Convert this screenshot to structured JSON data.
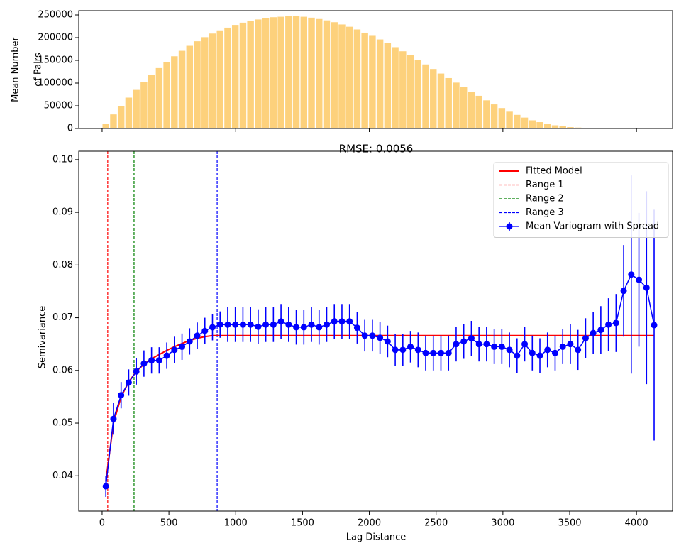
{
  "chart_data": [
    {
      "type": "bar",
      "ylabel": [
        "Mean Number",
        "of Pairs"
      ],
      "x": [
        28,
        85,
        142,
        199,
        256,
        313,
        370,
        427,
        484,
        541,
        598,
        655,
        712,
        769,
        826,
        883,
        940,
        997,
        1054,
        1111,
        1168,
        1225,
        1282,
        1339,
        1396,
        1453,
        1510,
        1567,
        1624,
        1681,
        1738,
        1795,
        1852,
        1909,
        1966,
        2023,
        2080,
        2137,
        2194,
        2251,
        2308,
        2365,
        2422,
        2479,
        2536,
        2593,
        2650,
        2707,
        2764,
        2821,
        2878,
        2935,
        2992,
        3049,
        3106,
        3163,
        3220,
        3277,
        3334,
        3391,
        3448,
        3505,
        3562,
        3619,
        3676,
        3733,
        3790,
        3847,
        3904,
        3961,
        4018,
        4075,
        4132
      ],
      "values": [
        10000,
        31000,
        50000,
        68000,
        85000,
        102000,
        118000,
        133000,
        146000,
        159000,
        171000,
        182000,
        192000,
        201000,
        209000,
        216000,
        222000,
        228000,
        233000,
        237000,
        240000,
        243000,
        245000,
        246000,
        247000,
        247000,
        246000,
        244000,
        241000,
        238000,
        234000,
        229000,
        224000,
        218000,
        211000,
        204000,
        196000,
        188000,
        179000,
        170000,
        161000,
        151000,
        141000,
        131000,
        121000,
        111000,
        101000,
        91000,
        81000,
        72000,
        62000,
        53000,
        45000,
        37000,
        30000,
        24000,
        18000,
        14000,
        10000,
        7000,
        5000,
        3000,
        2000,
        1000,
        500,
        200,
        0,
        0,
        0,
        0,
        0,
        0,
        0
      ],
      "color": "#fdd17c",
      "xlim": [
        -175,
        4270
      ],
      "xticks": [
        0,
        1000,
        2000,
        3000,
        4000
      ],
      "xtick_labels": false,
      "ylim": [
        0,
        259400
      ],
      "yticks": [
        0,
        50000,
        100000,
        150000,
        200000,
        250000
      ]
    },
    {
      "type": "line",
      "title": "RMSE: 0.0056",
      "xlabel": "Lag Distance",
      "ylabel": "Semivariance",
      "x": [
        28,
        85,
        142,
        199,
        256,
        313,
        370,
        427,
        484,
        541,
        598,
        655,
        712,
        769,
        826,
        883,
        940,
        997,
        1054,
        1111,
        1168,
        1225,
        1282,
        1339,
        1396,
        1453,
        1510,
        1567,
        1624,
        1681,
        1738,
        1795,
        1852,
        1909,
        1966,
        2023,
        2080,
        2137,
        2194,
        2251,
        2308,
        2365,
        2422,
        2479,
        2536,
        2593,
        2650,
        2707,
        2764,
        2821,
        2878,
        2935,
        2992,
        3049,
        3106,
        3163,
        3220,
        3277,
        3334,
        3391,
        3448,
        3505,
        3562,
        3619,
        3676,
        3733,
        3790,
        3847,
        3904,
        3961,
        4018,
        4075,
        4132
      ],
      "series": [
        {
          "name": "Fitted Model",
          "color": "#ff0000",
          "values": [
            0.039,
            0.05,
            0.055,
            0.0578,
            0.0598,
            0.0612,
            0.0622,
            0.063,
            0.0638,
            0.0645,
            0.0651,
            0.0657,
            0.0661,
            0.0664,
            0.0666,
            0.0666,
            0.0666,
            0.0666,
            0.0666,
            0.0666,
            0.0666,
            0.0666,
            0.0666,
            0.0666,
            0.0666,
            0.0666,
            0.0666,
            0.0666,
            0.0666,
            0.0666,
            0.0666,
            0.0666,
            0.0666,
            0.0666,
            0.0666,
            0.0666,
            0.0666,
            0.0666,
            0.0666,
            0.0666,
            0.0666,
            0.0666,
            0.0666,
            0.0666,
            0.0666,
            0.0666,
            0.0666,
            0.0666,
            0.0666,
            0.0666,
            0.0666,
            0.0666,
            0.0666,
            0.0666,
            0.0666,
            0.0666,
            0.0666,
            0.0666,
            0.0666,
            0.0666,
            0.0666,
            0.0666,
            0.0666,
            0.0666,
            0.0666,
            0.0666,
            0.0666,
            0.0666,
            0.0666,
            0.0666,
            0.0666,
            0.0666,
            0.0666
          ]
        },
        {
          "name": "Mean Variogram with Spread",
          "color": "#0000ff",
          "values": [
            0.038,
            0.0508,
            0.0553,
            0.0577,
            0.0598,
            0.0613,
            0.0619,
            0.0619,
            0.0628,
            0.0639,
            0.0645,
            0.0655,
            0.0666,
            0.0675,
            0.0682,
            0.0687,
            0.0687,
            0.0687,
            0.0687,
            0.0687,
            0.0683,
            0.0687,
            0.0687,
            0.0693,
            0.0687,
            0.0682,
            0.0682,
            0.0687,
            0.0682,
            0.0687,
            0.0693,
            0.0693,
            0.0693,
            0.0681,
            0.0666,
            0.0666,
            0.0662,
            0.0655,
            0.0639,
            0.0639,
            0.0645,
            0.0639,
            0.0633,
            0.0633,
            0.0633,
            0.0633,
            0.065,
            0.0655,
            0.0661,
            0.065,
            0.065,
            0.0645,
            0.0645,
            0.0639,
            0.0628,
            0.065,
            0.0633,
            0.0628,
            0.0639,
            0.0633,
            0.0645,
            0.065,
            0.0639,
            0.0661,
            0.0671,
            0.0677,
            0.0687,
            0.069,
            0.0751,
            0.0782,
            0.0772,
            0.0757,
            0.0686
          ],
          "errors": [
            0.002,
            0.003,
            0.0025,
            0.0025,
            0.0025,
            0.0025,
            0.0025,
            0.0025,
            0.0025,
            0.0025,
            0.0025,
            0.0025,
            0.0025,
            0.0025,
            0.0025,
            0.0025,
            0.0033,
            0.0033,
            0.0033,
            0.0033,
            0.0033,
            0.0033,
            0.0033,
            0.0033,
            0.0033,
            0.0033,
            0.0033,
            0.0033,
            0.0033,
            0.0033,
            0.0033,
            0.0033,
            0.0033,
            0.003,
            0.003,
            0.003,
            0.003,
            0.003,
            0.003,
            0.003,
            0.003,
            0.0033,
            0.0033,
            0.0033,
            0.0033,
            0.0033,
            0.0033,
            0.0033,
            0.0033,
            0.0033,
            0.0033,
            0.0033,
            0.0033,
            0.0033,
            0.0033,
            0.0033,
            0.0033,
            0.0033,
            0.0033,
            0.0033,
            0.0033,
            0.0038,
            0.0038,
            0.0038,
            0.004,
            0.0045,
            0.005,
            0.0055,
            0.0087,
            0.0188,
            0.0127,
            0.0183,
            0.0219
          ]
        }
      ],
      "vlines": [
        {
          "name": "Range 1",
          "color": "#ff0000",
          "x": 42
        },
        {
          "name": "Range 2",
          "color": "#008000",
          "x": 239
        },
        {
          "name": "Range 3",
          "color": "#0000ff",
          "x": 861
        }
      ],
      "xlim": [
        -175,
        4270
      ],
      "xticks": [
        0,
        500,
        1000,
        1500,
        2000,
        2500,
        3000,
        3500,
        4000
      ],
      "xtick_labels": true,
      "ylim": [
        0.0333,
        0.1016
      ],
      "yticks": [
        0.04,
        0.05,
        0.06,
        0.07,
        0.08,
        0.09,
        {
          "value": 0.1,
          "label": "0.10"
        }
      ],
      "legend": "upper right"
    }
  ]
}
